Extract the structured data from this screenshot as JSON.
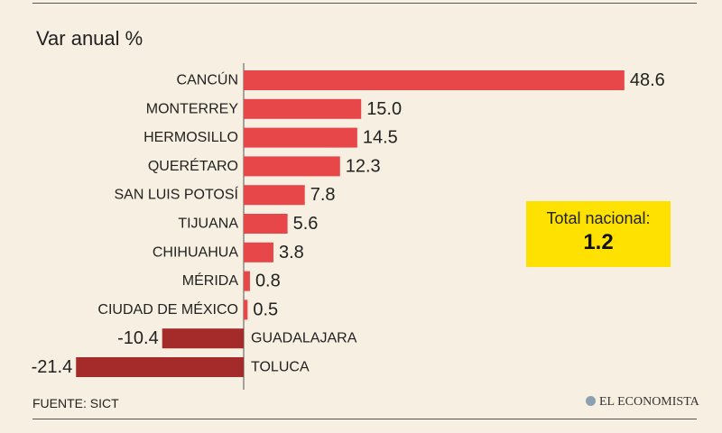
{
  "title": "Var anual %",
  "source": "FUENTE: SICT",
  "brand": "EL ECONOMISTA",
  "total": {
    "label": "Total nacional:",
    "value": "1.2"
  },
  "colors": {
    "positive": "#e8474a",
    "negative": "#a52a2a",
    "highlight": "#ffe100",
    "background": "#f7efe1",
    "axis": "#555555"
  },
  "chart_data": {
    "type": "bar",
    "orientation": "horizontal",
    "title": "Var anual %",
    "categories": [
      "CANCÚN",
      "MONTERREY",
      "HERMOSILLO",
      "QUERÉTARO",
      "SAN LUIS POTOSÍ",
      "TIJUANA",
      "CHIHUAHUA",
      "MÉRIDA",
      "CIUDAD DE MÉXICO",
      "GUADALAJARA",
      "TOLUCA"
    ],
    "values": [
      48.6,
      15.0,
      14.5,
      12.3,
      7.8,
      5.6,
      3.8,
      0.8,
      0.5,
      -10.4,
      -21.4
    ],
    "labels": [
      "48.6",
      "15.0",
      "14.5",
      "12.3",
      "7.8",
      "5.6",
      "3.8",
      "0.8",
      "0.5",
      "-10.4",
      "-21.4"
    ],
    "grid": false,
    "legend": "none"
  }
}
